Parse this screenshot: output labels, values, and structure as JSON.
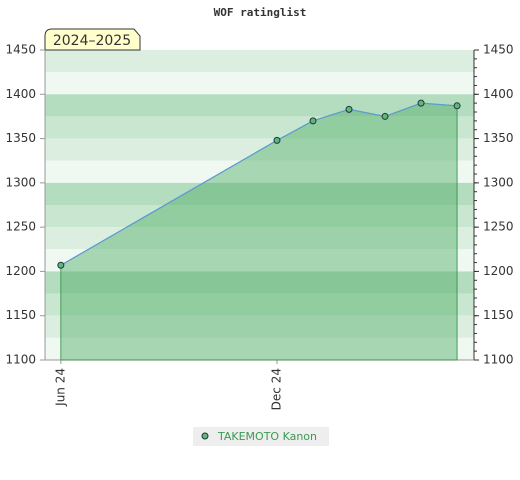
{
  "chart_data": {
    "type": "line",
    "title": "WOF ratinglist",
    "annotation": "2024–2025",
    "x": [
      0,
      6,
      7,
      8,
      9,
      10,
      11
    ],
    "xlim": [
      -0.44,
      11.47
    ],
    "xticks": [
      {
        "value": 0,
        "label": "Jun 24"
      },
      {
        "value": 6,
        "label": "Dec 24"
      }
    ],
    "series": [
      {
        "name": "TAKEMOTO Kanon",
        "color": "#5fb874",
        "values": [
          1207,
          1348,
          1370,
          1383,
          1375,
          1390,
          1387
        ]
      }
    ],
    "ylim": [
      1100,
      1450
    ],
    "yticks": [
      1100,
      1150,
      1200,
      1250,
      1300,
      1350,
      1400,
      1450
    ],
    "right_axis": true,
    "legend": "bottom"
  }
}
